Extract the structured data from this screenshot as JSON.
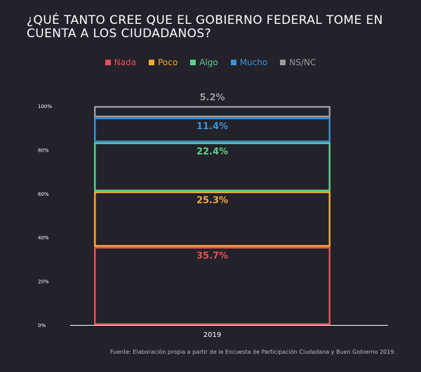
{
  "chart_data": {
    "type": "bar",
    "stacked": true,
    "title": "¿QUÉ TANTO CREE QUE EL GOBIERNO FEDERAL TOME EN CUENTA A LOS CIUDADANOS?",
    "categories": [
      "2019"
    ],
    "series": [
      {
        "name": "Nada",
        "values": [
          35.7
        ],
        "label": "35.7%",
        "color": "#e6505a"
      },
      {
        "name": "Poco",
        "values": [
          25.3
        ],
        "label": "25.3%",
        "color": "#f2a93b"
      },
      {
        "name": "Algo",
        "values": [
          22.4
        ],
        "label": "22.4%",
        "color": "#5ccf8f"
      },
      {
        "name": "Mucho",
        "values": [
          11.4
        ],
        "label": "11.4%",
        "color": "#3a93d3"
      },
      {
        "name": "NS/NC",
        "values": [
          5.2
        ],
        "label": "5.2%",
        "color": "#9a9a9a"
      }
    ],
    "yticks": [
      "0%",
      "20%",
      "40%",
      "60%",
      "80%",
      "100%"
    ],
    "ylim": [
      0,
      100
    ],
    "legend_position": "top-center",
    "grid": false,
    "source": "Fuente: Elaboración propia a partir de la Encuesta de Participación Ciudadana y Buen Gobierno 2019."
  }
}
